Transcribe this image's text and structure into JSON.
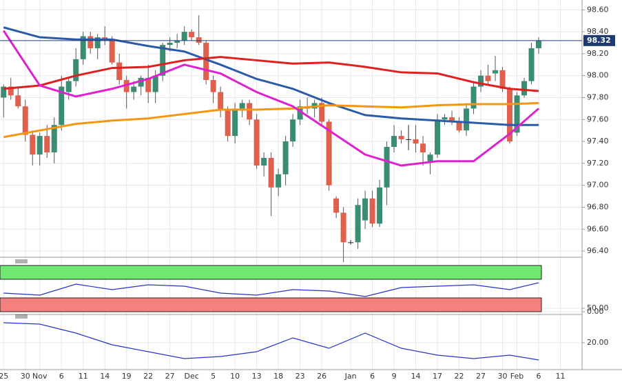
{
  "chart_data": [
    {
      "type": "candlestick",
      "x": [
        0,
        1,
        2,
        3,
        4,
        5,
        6,
        7,
        8,
        9,
        10,
        11,
        12,
        13,
        14,
        15,
        16,
        17,
        18,
        19,
        20,
        21,
        22,
        23,
        24,
        25,
        26,
        27,
        28,
        29,
        30,
        31,
        32,
        33,
        34,
        35,
        36,
        37,
        38,
        39,
        40,
        41,
        42,
        43,
        44,
        45,
        46,
        47,
        48,
        49,
        50,
        51,
        52,
        53,
        54,
        55,
        56,
        57,
        58,
        59,
        60,
        61,
        62,
        63,
        64,
        65,
        66,
        67,
        68,
        69,
        70,
        71,
        72,
        73,
        74
      ],
      "open": [
        97.8,
        97.9,
        97.82,
        97.72,
        97.46,
        97.28,
        97.45,
        97.3,
        97.55,
        97.85,
        97.95,
        98.15,
        98.36,
        98.25,
        98.35,
        98.32,
        98.12,
        97.96,
        97.85,
        97.9,
        97.98,
        97.85,
        98.0,
        98.28,
        98.3,
        98.32,
        98.4,
        98.35,
        98.3,
        97.96,
        97.85,
        97.68,
        97.45,
        97.7,
        97.75,
        97.6,
        97.18,
        97.25,
        96.98,
        97.1,
        97.4,
        97.6,
        97.72,
        97.7,
        97.75,
        97.58,
        96.88,
        96.75,
        96.48,
        96.48,
        96.68,
        96.88,
        96.65,
        96.98,
        97.35,
        97.45,
        97.42,
        97.42,
        97.38,
        97.22,
        97.28,
        97.6,
        97.62,
        97.58,
        97.5,
        97.7,
        97.9,
        98.0,
        98.02,
        98.05,
        97.88,
        97.48,
        97.82,
        97.95,
        98.25
      ],
      "high": [
        97.92,
        97.98,
        97.9,
        97.78,
        97.5,
        97.48,
        97.55,
        97.62,
        98.0,
        97.98,
        98.25,
        98.4,
        98.4,
        98.38,
        98.45,
        98.36,
        98.2,
        98.0,
        97.95,
        98.0,
        98.1,
        98.05,
        98.3,
        98.35,
        98.38,
        98.45,
        98.42,
        98.55,
        98.32,
        98.0,
        97.9,
        97.72,
        97.75,
        97.78,
        97.78,
        97.65,
        97.3,
        97.3,
        97.15,
        97.45,
        97.65,
        97.78,
        97.8,
        97.78,
        97.8,
        97.6,
        96.9,
        96.8,
        96.5,
        96.88,
        96.95,
        96.95,
        97.05,
        97.4,
        97.55,
        97.5,
        97.55,
        97.55,
        97.45,
        97.3,
        97.65,
        97.65,
        97.68,
        97.62,
        97.75,
        97.95,
        98.05,
        98.1,
        98.18,
        98.08,
        97.9,
        97.85,
        97.98,
        98.3,
        98.35
      ],
      "low": [
        97.62,
        97.78,
        97.7,
        97.4,
        97.18,
        97.18,
        97.25,
        97.2,
        97.5,
        97.78,
        97.9,
        98.1,
        98.2,
        98.15,
        98.28,
        98.1,
        97.92,
        97.7,
        97.78,
        97.82,
        97.75,
        97.75,
        97.95,
        98.22,
        98.25,
        98.28,
        98.32,
        98.28,
        97.92,
        97.75,
        97.62,
        97.4,
        97.38,
        97.62,
        97.55,
        97.15,
        97.08,
        96.72,
        96.9,
        97.0,
        97.35,
        97.55,
        97.65,
        97.62,
        97.55,
        96.95,
        96.7,
        96.3,
        96.46,
        96.42,
        96.6,
        96.62,
        96.62,
        96.82,
        97.3,
        97.38,
        97.32,
        97.3,
        97.18,
        97.1,
        97.25,
        97.55,
        97.55,
        97.48,
        97.45,
        97.65,
        97.85,
        97.92,
        97.95,
        97.85,
        97.38,
        97.45,
        97.8,
        97.92,
        98.2
      ],
      "close": [
        97.9,
        97.82,
        97.72,
        97.46,
        97.28,
        97.45,
        97.3,
        97.55,
        97.9,
        97.95,
        98.15,
        98.36,
        98.25,
        98.35,
        98.32,
        98.12,
        97.96,
        97.85,
        97.9,
        97.98,
        97.85,
        98.0,
        98.28,
        98.3,
        98.32,
        98.4,
        98.35,
        98.3,
        97.96,
        97.85,
        97.68,
        97.45,
        97.7,
        97.75,
        97.6,
        97.18,
        97.25,
        96.98,
        97.1,
        97.4,
        97.6,
        97.72,
        97.7,
        97.75,
        97.58,
        97.0,
        96.75,
        96.48,
        96.48,
        96.82,
        96.88,
        96.65,
        96.98,
        97.35,
        97.45,
        97.42,
        97.42,
        97.38,
        97.3,
        97.28,
        97.6,
        97.62,
        97.58,
        97.5,
        97.7,
        97.9,
        98.0,
        97.95,
        98.05,
        97.88,
        97.4,
        97.82,
        97.95,
        98.25,
        98.32
      ],
      "up_color": "#3a8c72",
      "down_color": "#e0604e",
      "xlim": [
        -0.5,
        80
      ],
      "ylim": [
        96.35,
        98.69
      ],
      "yticks": [
        {
          "value": 96.4,
          "label": "96.40"
        },
        {
          "value": 96.6,
          "label": "96.60"
        },
        {
          "value": 96.8,
          "label": "96.80"
        },
        {
          "value": 97.0,
          "label": "97.00"
        },
        {
          "value": 97.2,
          "label": "97.20"
        },
        {
          "value": 97.4,
          "label": "97.40"
        },
        {
          "value": 97.6,
          "label": "97.60"
        },
        {
          "value": 97.8,
          "label": "97.80"
        },
        {
          "value": 98.0,
          "label": "98.00"
        },
        {
          "value": 98.2,
          "label": "98.20"
        },
        {
          "value": 98.4,
          "label": "98.40"
        },
        {
          "value": 98.6,
          "label": "98.60"
        }
      ],
      "xticks": [
        {
          "value": 0,
          "label": "25"
        },
        {
          "value": 3,
          "label": "30"
        },
        {
          "value": 5,
          "label": "Nov"
        },
        {
          "value": 8,
          "label": "6"
        },
        {
          "value": 11,
          "label": "11"
        },
        {
          "value": 14,
          "label": "14"
        },
        {
          "value": 17,
          "label": "19"
        },
        {
          "value": 20,
          "label": "22"
        },
        {
          "value": 23,
          "label": "27"
        },
        {
          "value": 26,
          "label": "Dec"
        },
        {
          "value": 29,
          "label": "5"
        },
        {
          "value": 32,
          "label": "10"
        },
        {
          "value": 35,
          "label": "13"
        },
        {
          "value": 38,
          "label": "18"
        },
        {
          "value": 41,
          "label": "23"
        },
        {
          "value": 44,
          "label": "26"
        },
        {
          "value": 48,
          "label": "Jan"
        },
        {
          "value": 51,
          "label": "6"
        },
        {
          "value": 54,
          "label": "9"
        },
        {
          "value": 57,
          "label": "14"
        },
        {
          "value": 60,
          "label": "17"
        },
        {
          "value": 63,
          "label": "22"
        },
        {
          "value": 66,
          "label": "27"
        },
        {
          "value": 69,
          "label": "30"
        },
        {
          "value": 71,
          "label": "Feb"
        },
        {
          "value": 74,
          "label": "6"
        },
        {
          "value": 77,
          "label": "11"
        }
      ],
      "current_price": 98.32,
      "current_price_color": "#1f3b6e",
      "lines": [
        {
          "color": "#2b5ba8",
          "x": [
            0,
            5,
            10,
            15,
            20,
            25,
            30,
            35,
            40,
            45,
            50,
            55,
            60,
            65,
            70,
            74
          ],
          "values": [
            98.44,
            98.35,
            98.33,
            98.33,
            98.27,
            98.22,
            98.1,
            97.97,
            97.88,
            97.75,
            97.64,
            97.61,
            97.59,
            97.57,
            97.55,
            97.55
          ]
        },
        {
          "color": "#e02020",
          "x": [
            0,
            5,
            10,
            15,
            20,
            25,
            30,
            35,
            40,
            45,
            50,
            55,
            60,
            65,
            70,
            74
          ],
          "values": [
            97.88,
            97.91,
            98.0,
            98.07,
            98.08,
            98.14,
            98.17,
            98.14,
            98.11,
            98.12,
            98.08,
            98.03,
            98.02,
            97.94,
            97.88,
            97.86
          ]
        },
        {
          "color": "#f5960f",
          "x": [
            0,
            5,
            10,
            15,
            20,
            25,
            30,
            35,
            40,
            45,
            50,
            55,
            60,
            65,
            70,
            74
          ],
          "values": [
            97.44,
            97.5,
            97.56,
            97.59,
            97.61,
            97.65,
            97.69,
            97.69,
            97.7,
            97.73,
            97.72,
            97.71,
            97.73,
            97.74,
            97.74,
            97.75
          ]
        },
        {
          "color": "#e020d0",
          "x": [
            0,
            5,
            10,
            15,
            20,
            25,
            30,
            35,
            40,
            45,
            50,
            55,
            60,
            65,
            70,
            74
          ],
          "values": [
            98.41,
            97.91,
            97.81,
            97.88,
            97.97,
            98.1,
            98.02,
            97.85,
            97.72,
            97.5,
            97.28,
            97.18,
            97.22,
            97.22,
            97.47,
            97.7
          ]
        }
      ]
    },
    {
      "type": "line",
      "xlim": [
        -0.5,
        80
      ],
      "ylim": [
        -30,
        740
      ],
      "yticks": [
        {
          "value": 50,
          "label": "50.00"
        },
        {
          "value": 0,
          "label": "0.00"
        }
      ],
      "series": [
        {
          "color": "#2233cc",
          "x": [
            0,
            5,
            10,
            15,
            20,
            25,
            30,
            35,
            40,
            45,
            50,
            55,
            60,
            65,
            70,
            74
          ],
          "values": [
            270,
            240,
            400,
            320,
            390,
            370,
            270,
            240,
            320,
            300,
            220,
            350,
            370,
            390,
            320,
            420
          ]
        }
      ]
    },
    {
      "type": "line",
      "xlim": [
        -0.5,
        80
      ],
      "ylim": [
        1,
        39.5
      ],
      "yticks": [
        {
          "value": 20,
          "label": "20.00"
        }
      ],
      "series": [
        {
          "color": "#2233cc",
          "x": [
            0,
            5,
            10,
            15,
            20,
            25,
            30,
            35,
            40,
            45,
            50,
            55,
            60,
            65,
            70,
            74
          ],
          "values": [
            34.5,
            33.5,
            27,
            18.5,
            13.5,
            8.5,
            10,
            13.5,
            23.5,
            16,
            27,
            16,
            11,
            8.5,
            11,
            7.5
          ]
        }
      ]
    }
  ]
}
